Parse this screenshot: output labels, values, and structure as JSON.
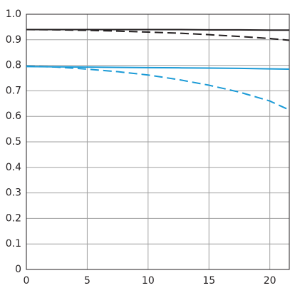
{
  "chart_data": {
    "type": "line",
    "x": [
      0,
      2.5,
      5,
      7.5,
      10,
      12.5,
      15,
      17.5,
      20,
      21.6
    ],
    "series": [
      {
        "color": "#231f20",
        "style": "solid",
        "values": [
          0.94,
          0.94,
          0.94,
          0.94,
          0.94,
          0.94,
          0.939,
          0.939,
          0.938,
          0.938
        ]
      },
      {
        "color": "#231f20",
        "style": "dashed",
        "values": [
          0.94,
          0.939,
          0.937,
          0.934,
          0.93,
          0.926,
          0.92,
          0.913,
          0.905,
          0.898
        ]
      },
      {
        "color": "#1a9ad6",
        "style": "solid",
        "values": [
          0.795,
          0.794,
          0.793,
          0.792,
          0.791,
          0.79,
          0.789,
          0.788,
          0.786,
          0.785
        ]
      },
      {
        "color": "#1a9ad6",
        "style": "dashed",
        "values": [
          0.797,
          0.793,
          0.785,
          0.775,
          0.762,
          0.744,
          0.722,
          0.695,
          0.66,
          0.625
        ]
      }
    ],
    "xlim": [
      0,
      21.6
    ],
    "ylim": [
      0,
      1
    ],
    "xticks": [
      0,
      5,
      10,
      15,
      20
    ],
    "yticks": [
      0,
      0.1,
      0.2,
      0.3,
      0.4,
      0.5,
      0.6,
      0.7,
      0.8,
      0.9,
      {
        "value": 1,
        "label": "1.0"
      }
    ],
    "grid": true
  }
}
